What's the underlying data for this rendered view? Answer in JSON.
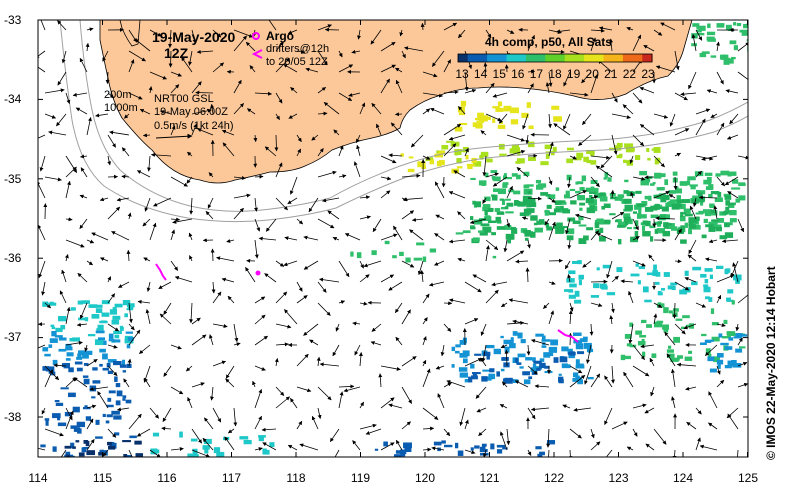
{
  "title": {
    "date": "19-May-2020",
    "time": "12Z"
  },
  "legend": {
    "argo_label": "Argo",
    "drifters_line1": "drifters@12h",
    "drifters_line2": "to 20/05 12Z",
    "argo_color": "#ff00ff",
    "drifter_color": "#ff00ff"
  },
  "depth_contours": {
    "label_200": "200m",
    "label_1000": "1000m"
  },
  "currents": {
    "source": "NRT00 GSL",
    "time": "19-May 06:00Z",
    "scale": "0.5m/s (1kt 24h)"
  },
  "colorbar": {
    "title": "4h comp, p50, All Sats",
    "values": [
      "13",
      "14",
      "15",
      "16",
      "17",
      "18",
      "19",
      "20",
      "21",
      "22",
      "23"
    ],
    "colors": [
      "#08306b",
      "#0a5cb0",
      "#1493d4",
      "#1ec8c8",
      "#2fbf6a",
      "#5fcf2a",
      "#a8e01e",
      "#e6e41a",
      "#f4b41a",
      "#ee6a1a",
      "#c8281e"
    ]
  },
  "axes": {
    "x_ticks": [
      "114",
      "115",
      "116",
      "117",
      "118",
      "119",
      "120",
      "121",
      "122",
      "123",
      "124",
      "125"
    ],
    "y_ticks": [
      "-33",
      "-34",
      "-35",
      "-36",
      "-37",
      "-38"
    ]
  },
  "credit": "© IMOS 22-May-2020 12:14 Hobart",
  "colors": {
    "land": "#fcc89a",
    "coast": "#000000",
    "contour": "#a0a0a0"
  }
}
